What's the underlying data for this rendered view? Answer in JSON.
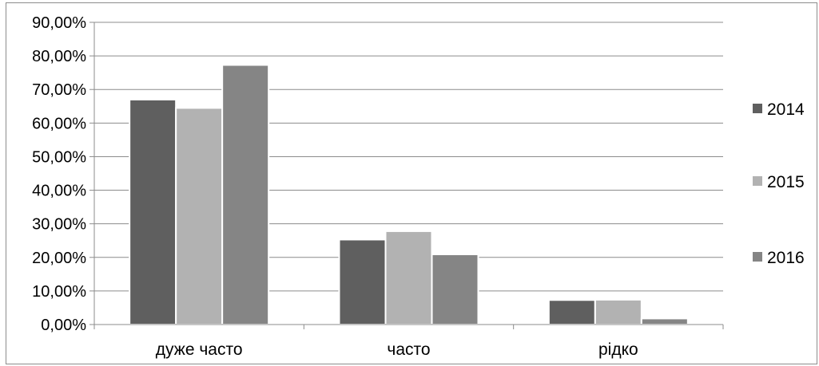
{
  "chart_data": {
    "type": "bar",
    "title": "",
    "xlabel": "",
    "ylabel": "",
    "ylim": [
      0,
      90
    ],
    "y_ticks": [
      "0,00%",
      "10,00%",
      "20,00%",
      "30,00%",
      "40,00%",
      "50,00%",
      "60,00%",
      "70,00%",
      "80,00%",
      "90,00%"
    ],
    "categories": [
      "дуже часто",
      "часто",
      "рідко"
    ],
    "series": [
      {
        "name": "2014",
        "color": "#5f5f5f",
        "values": [
          67.0,
          25.3,
          7.3
        ]
      },
      {
        "name": "2015",
        "color": "#b2b2b2",
        "values": [
          64.5,
          27.8,
          7.4
        ]
      },
      {
        "name": "2016",
        "color": "#858585",
        "values": [
          77.3,
          20.9,
          1.8
        ]
      }
    ],
    "grid": true,
    "legend_position": "right"
  }
}
